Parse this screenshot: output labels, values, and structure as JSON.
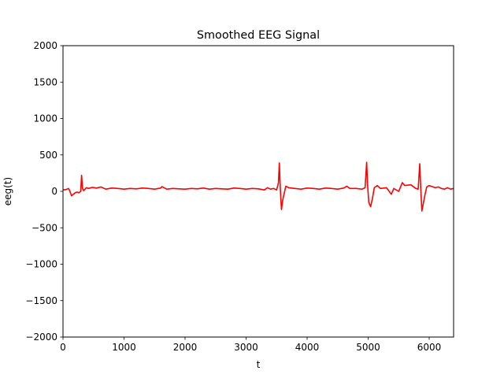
{
  "chart_data": {
    "type": "line",
    "title": "Smoothed EEG Signal",
    "xlabel": "t",
    "ylabel": "eeg(t)",
    "xlim": [
      0,
      6400
    ],
    "ylim": [
      -2000,
      2000
    ],
    "xticks": [
      0,
      1000,
      2000,
      3000,
      4000,
      5000,
      6000
    ],
    "yticks": [
      -2000,
      -1500,
      -1000,
      -500,
      0,
      500,
      1000,
      1500,
      2000
    ],
    "xtick_labels": [
      "0",
      "1000",
      "2000",
      "3000",
      "4000",
      "5000",
      "6000"
    ],
    "ytick_labels": [
      "−2000",
      "−1500",
      "−1000",
      "−500",
      "0",
      "500",
      "1000",
      "1500",
      "2000"
    ],
    "grid": false,
    "line_color": "#ff0000",
    "series": [
      {
        "x": [
          0,
          50,
          90,
          110,
          140,
          170,
          200,
          230,
          260,
          290,
          305,
          320,
          340,
          380,
          420,
          480,
          550,
          620,
          700,
          800,
          900,
          1000,
          1100,
          1200,
          1300,
          1400,
          1500,
          1600,
          1620,
          1700,
          1800,
          1900,
          2000,
          2100,
          2200,
          2300,
          2400,
          2500,
          2600,
          2700,
          2800,
          2900,
          3000,
          3100,
          3200,
          3300,
          3350,
          3400,
          3450,
          3500,
          3530,
          3545,
          3560,
          3580,
          3600,
          3650,
          3700,
          3800,
          3900,
          4000,
          4100,
          4200,
          4300,
          4400,
          4500,
          4600,
          4650,
          4700,
          4800,
          4900,
          4950,
          4975,
          4990,
          5010,
          5040,
          5070,
          5100,
          5150,
          5200,
          5300,
          5380,
          5420,
          5500,
          5560,
          5600,
          5700,
          5780,
          5820,
          5845,
          5860,
          5880,
          5900,
          5930,
          5960,
          6000,
          6100,
          6150,
          6200,
          6250,
          6300,
          6350,
          6400
        ],
        "values": [
          20,
          25,
          40,
          10,
          -60,
          -40,
          -20,
          -10,
          -20,
          0,
          220,
          40,
          10,
          50,
          40,
          55,
          45,
          60,
          30,
          45,
          40,
          30,
          40,
          35,
          45,
          40,
          30,
          45,
          65,
          30,
          40,
          35,
          30,
          40,
          35,
          45,
          30,
          40,
          35,
          30,
          45,
          40,
          30,
          40,
          35,
          20,
          50,
          30,
          40,
          20,
          120,
          390,
          50,
          -250,
          -120,
          70,
          50,
          40,
          30,
          45,
          40,
          30,
          45,
          40,
          30,
          45,
          70,
          40,
          40,
          30,
          50,
          400,
          100,
          -150,
          -210,
          -100,
          50,
          80,
          40,
          50,
          -40,
          40,
          0,
          120,
          80,
          90,
          40,
          30,
          380,
          60,
          -270,
          -180,
          -50,
          60,
          80,
          50,
          60,
          40,
          30,
          50,
          30,
          40
        ]
      }
    ]
  }
}
